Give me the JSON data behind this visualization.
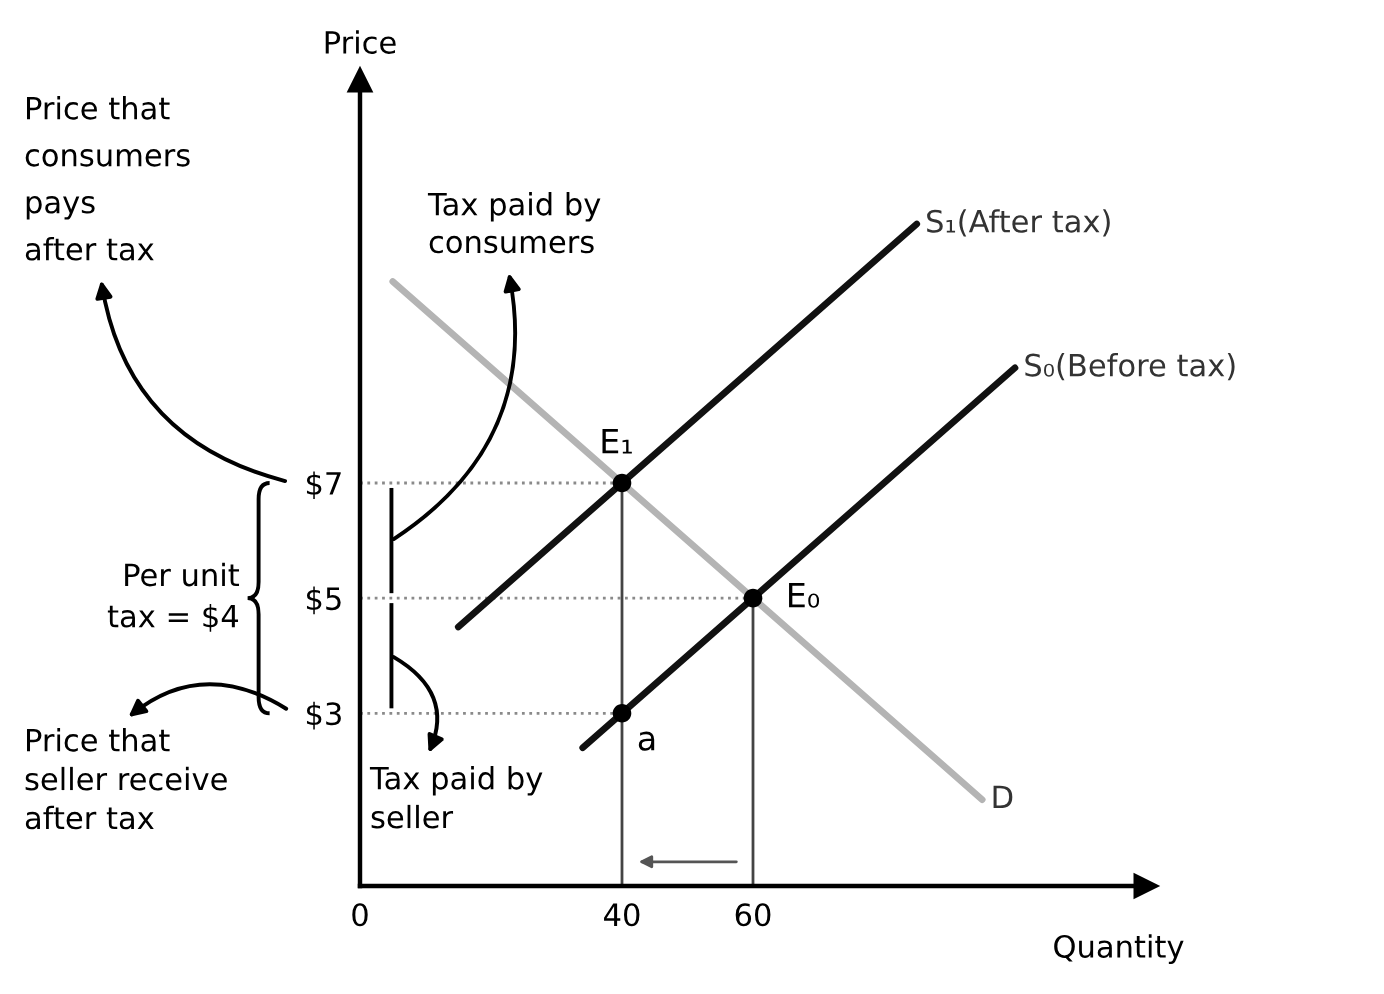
{
  "chart_data": {
    "type": "line",
    "xlabel": "Quantity",
    "ylabel": "Price",
    "xlim": [
      0,
      120
    ],
    "ylim": [
      0,
      14
    ],
    "xticks": [
      0,
      40,
      60
    ],
    "yticks": [
      {
        "value": 3,
        "label": "$3"
      },
      {
        "value": 5,
        "label": "$5"
      },
      {
        "value": 7,
        "label": "$7"
      }
    ],
    "series": [
      {
        "name": "S₁(After tax)",
        "color": "#111111",
        "x": [
          15,
          85
        ],
        "values": [
          4.5,
          11.5
        ]
      },
      {
        "name": "S₀(Before tax)",
        "color": "#111111",
        "x": [
          34,
          100
        ],
        "values": [
          2.4,
          9
        ]
      },
      {
        "name": "D",
        "color": "#b4b4b4",
        "x": [
          5,
          95
        ],
        "values": [
          10.5,
          1.5
        ]
      },
      {
        "type": "line",
        "line_style": "dotted",
        "color": "#8a8a8a",
        "x": [
          0,
          40
        ],
        "values": [
          7,
          7
        ]
      },
      {
        "type": "line",
        "line_style": "dotted",
        "color": "#8a8a8a",
        "x": [
          0,
          60
        ],
        "values": [
          5,
          5
        ]
      },
      {
        "type": "line",
        "line_style": "dotted",
        "color": "#8a8a8a",
        "x": [
          0,
          40
        ],
        "values": [
          3,
          3
        ]
      },
      {
        "type": "line",
        "color": "#444444",
        "x": [
          40,
          40
        ],
        "values": [
          0,
          7
        ]
      },
      {
        "type": "line",
        "color": "#444444",
        "x": [
          60,
          60
        ],
        "values": [
          0,
          5
        ]
      },
      {
        "type": "scatter",
        "name": "E₁",
        "marker": "circle",
        "color": "#000000",
        "x": [
          40
        ],
        "values": [
          7
        ]
      },
      {
        "type": "scatter",
        "name": "E₀",
        "marker": "circle",
        "color": "#000000",
        "x": [
          60
        ],
        "values": [
          5
        ]
      },
      {
        "type": "scatter",
        "name": "a",
        "marker": "circle",
        "color": "#000000",
        "x": [
          40
        ],
        "values": [
          3
        ]
      }
    ],
    "annotations": [
      "Price that\nconsumers\npays\nafter tax",
      "Tax paid by\nconsumers",
      "Per unit\ntax = $4",
      "Price that\nseller receive\nafter tax",
      "Tax paid by\nseller"
    ]
  }
}
